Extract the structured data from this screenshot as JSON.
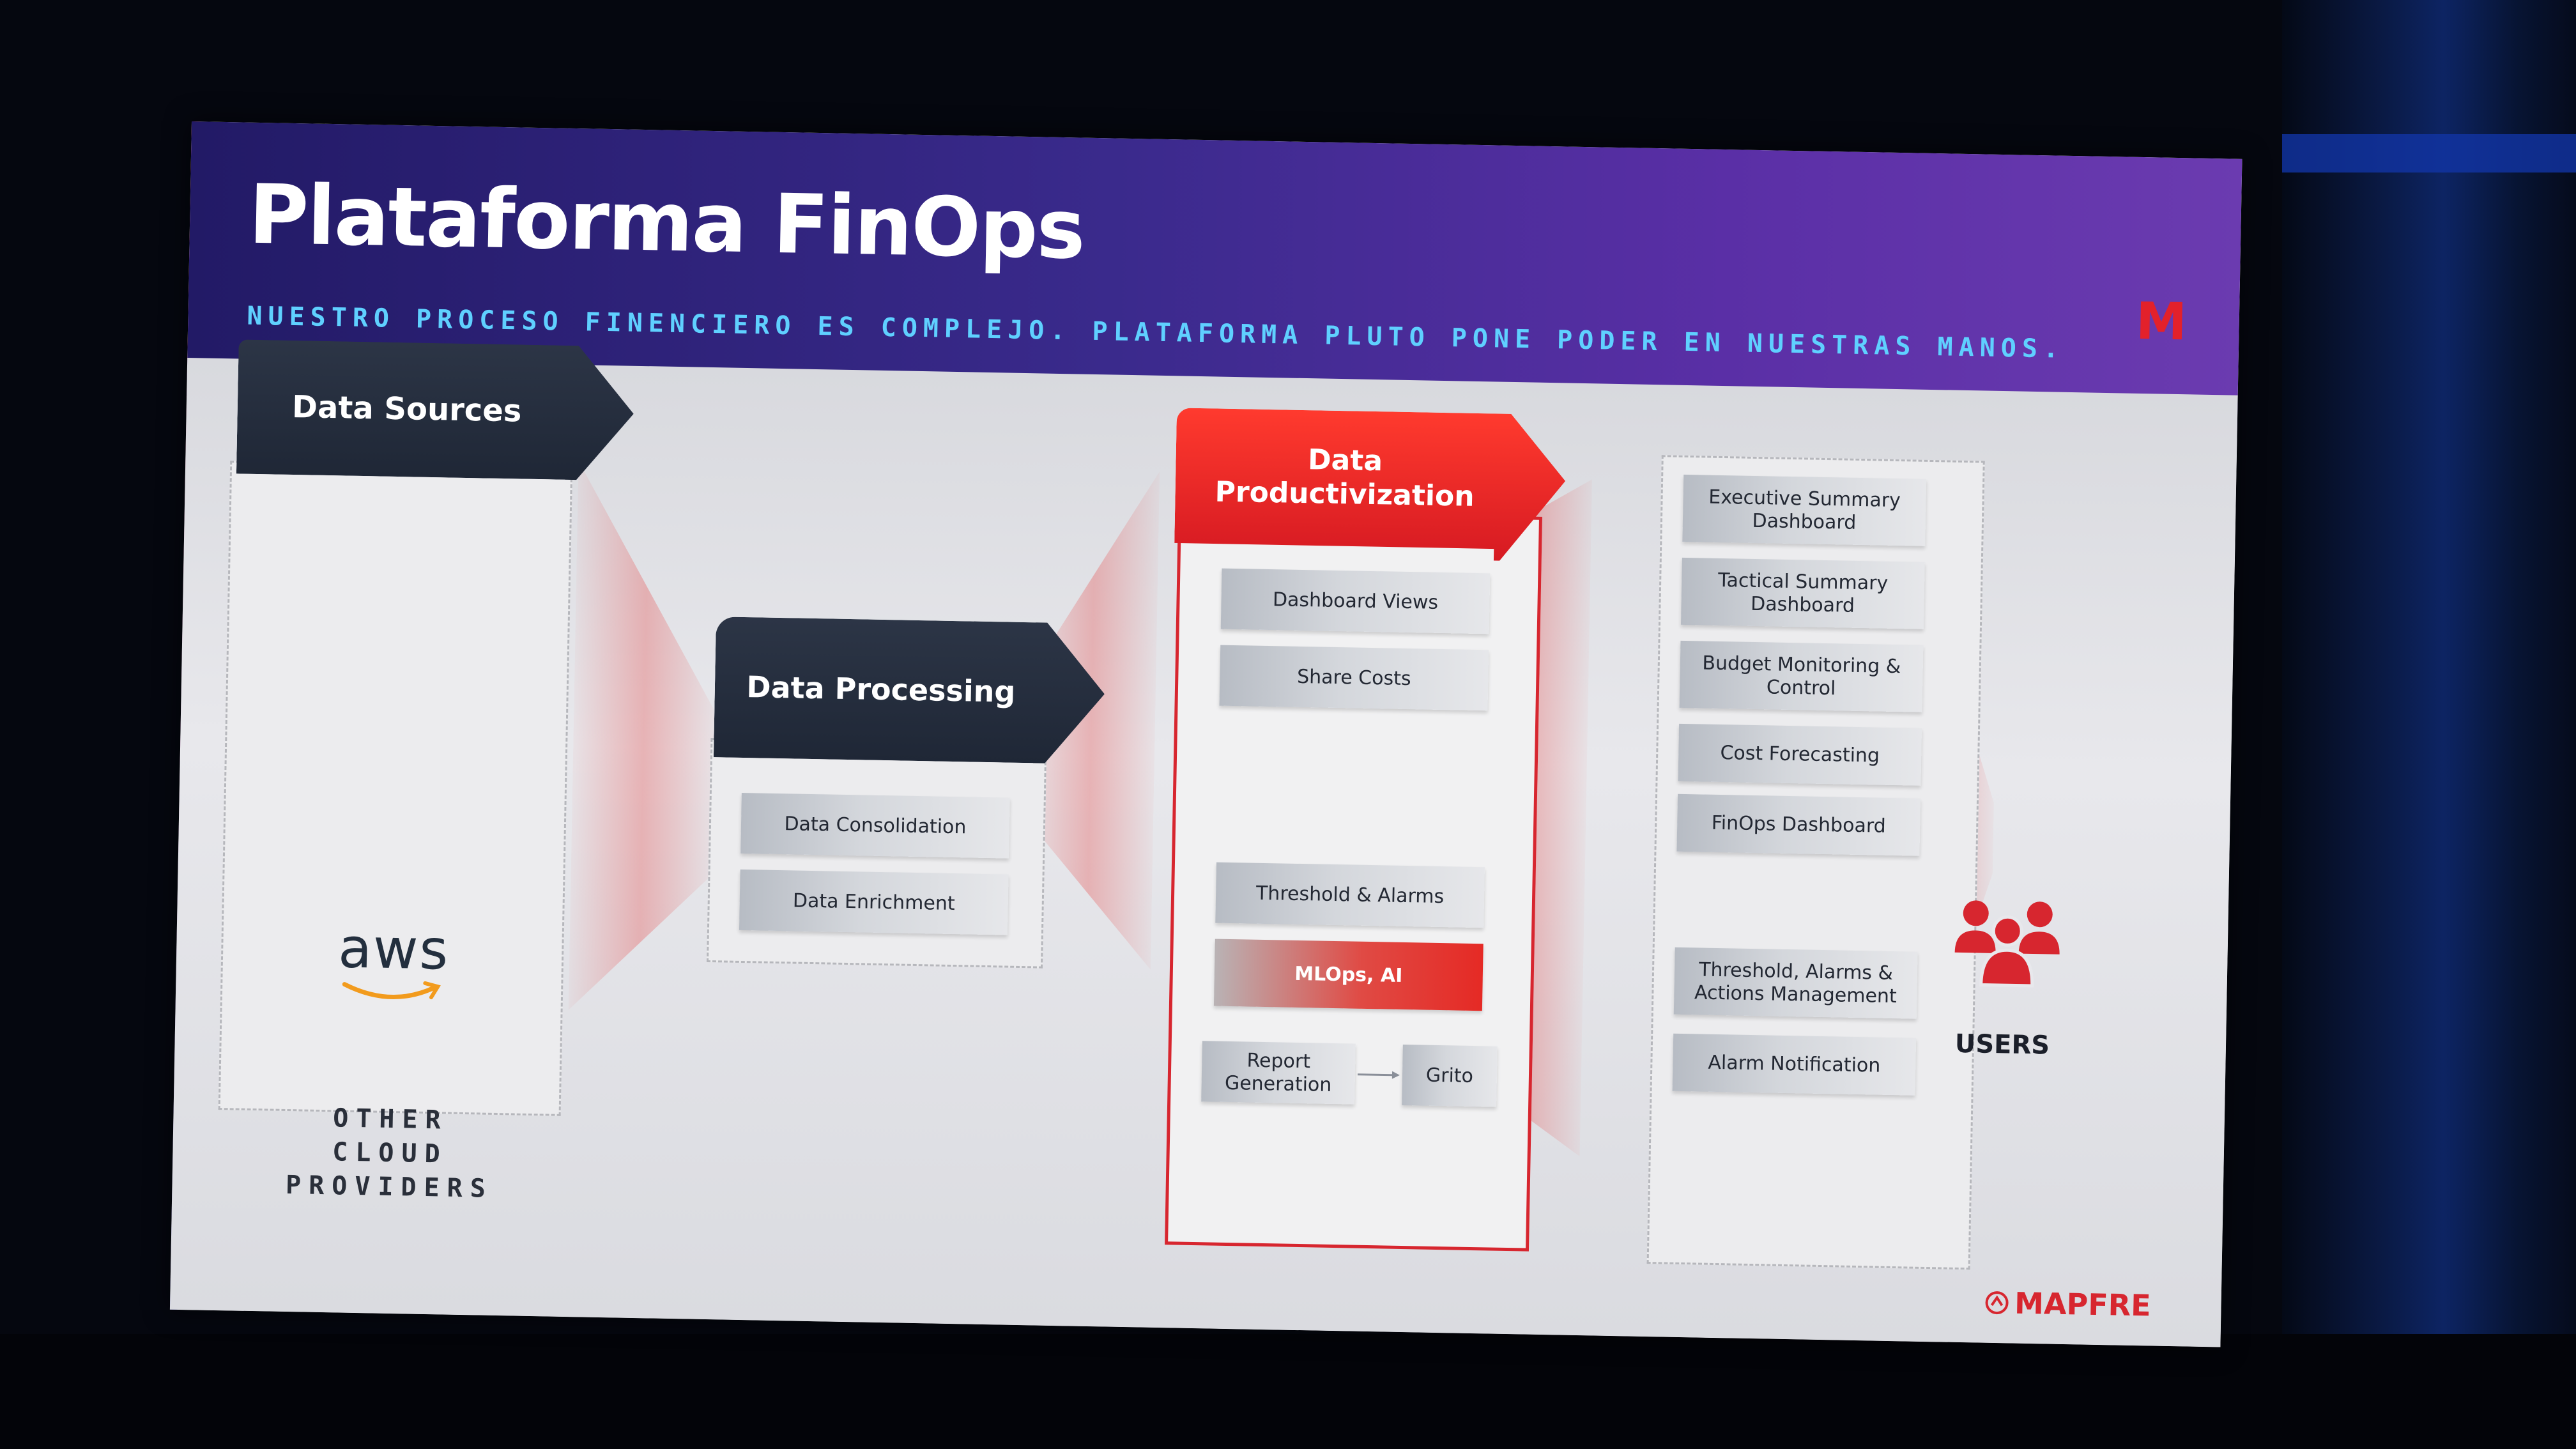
{
  "slide": {
    "title": "Plataforma FinOps",
    "subtitle": "NUESTRO PROCESO FINENCIERO ES COMPLEJO. PLATAFORMA PLUTO PONE PODER EN NUESTRAS MANOS.",
    "logo_letter": "M",
    "brand": "MAPFRE",
    "brand_color": "#d7262f",
    "header_color": "#2e2478",
    "subtitle_color": "#5fd0ff"
  },
  "sources": {
    "header": "Data Sources",
    "aws_label": "aws",
    "other_providers": [
      "OTHER",
      "CLOUD",
      "PROVIDERS"
    ]
  },
  "processing": {
    "header": "Data Processing",
    "items": [
      "Data Consolidation",
      "Data Enrichment"
    ]
  },
  "productivization": {
    "header_line1": "Data",
    "header_line2": "Productivization",
    "items": [
      "Dashboard Views",
      "Share Costs",
      "Threshold & Alarms",
      "MLOps, AI"
    ],
    "report_line1": "Report",
    "report_line2": "Generation",
    "grito": "Grito"
  },
  "outputs": {
    "items": [
      [
        "Executive Summary",
        "Dashboard"
      ],
      [
        "Tactical Summary",
        "Dashboard"
      ],
      [
        "Budget Monitoring &",
        "Control"
      ],
      [
        "Cost Forecasting"
      ],
      [
        "FinOps Dashboard"
      ],
      [
        "Threshold, Alarms &",
        "Actions Management"
      ],
      [
        "Alarm Notification"
      ]
    ]
  },
  "users": {
    "label": "USERS",
    "icon": "users-group-icon"
  }
}
